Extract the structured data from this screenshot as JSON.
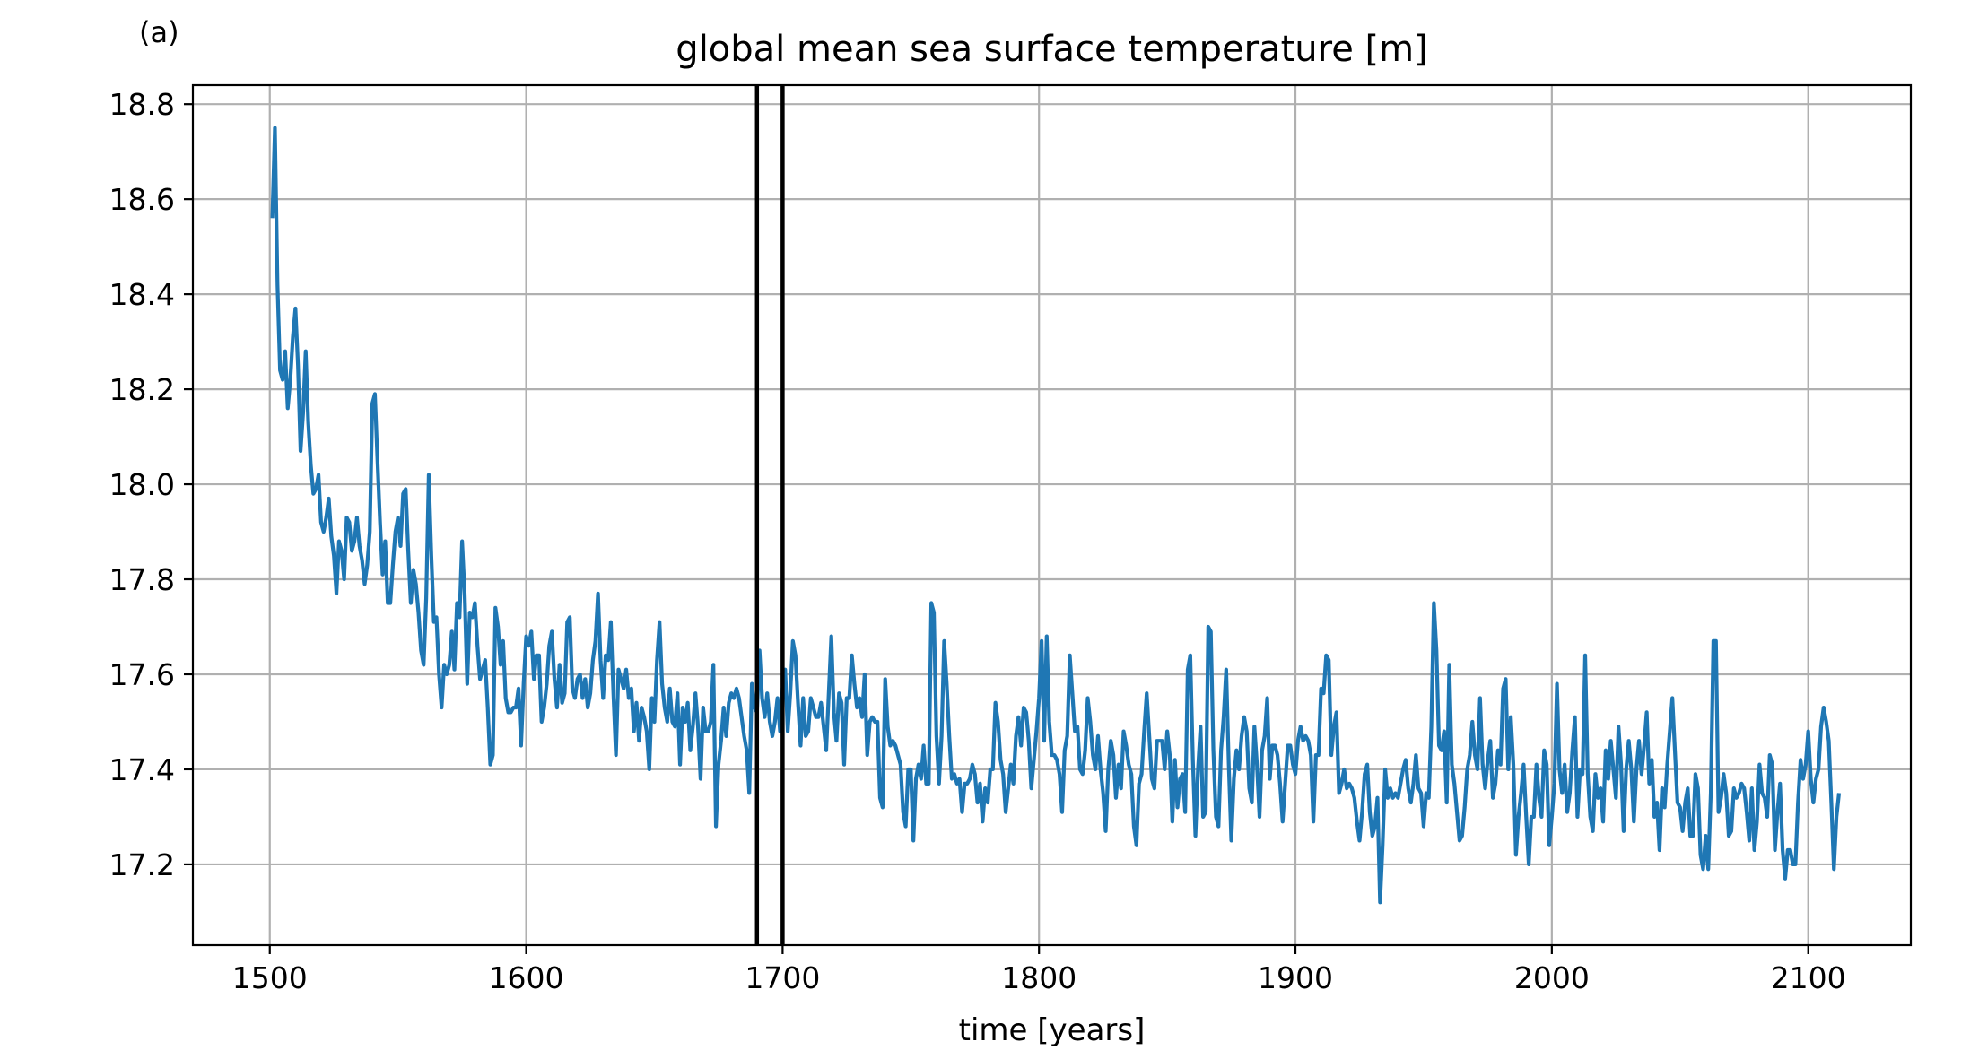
{
  "chart_data": {
    "type": "line",
    "panel_label": "(a)",
    "title": "global mean sea surface temperature [m]",
    "xlabel": "time [years]",
    "ylabel": "",
    "xlim": [
      1470,
      2140
    ],
    "ylim": [
      17.03,
      18.84
    ],
    "xticks": [
      1500,
      1600,
      1700,
      1800,
      1900,
      2000,
      2100
    ],
    "xtick_labels": [
      "1500",
      "1600",
      "1700",
      "1800",
      "1900",
      "2000",
      "2100"
    ],
    "yticks": [
      17.2,
      17.4,
      17.6,
      17.8,
      18.0,
      18.2,
      18.4,
      18.6,
      18.8
    ],
    "ytick_labels": [
      "17.2",
      "17.4",
      "17.6",
      "17.8",
      "18.0",
      "18.2",
      "18.4",
      "18.6",
      "18.8"
    ],
    "grid": true,
    "line_color": "#1f77b4",
    "vlines": [
      1690,
      1700
    ],
    "vline_color": "#000000",
    "series": [
      {
        "x_start": 1501,
        "x_step": 1,
        "values": [
          18.56,
          18.75,
          18.42,
          18.24,
          18.22,
          18.28,
          18.16,
          18.22,
          18.31,
          18.37,
          18.25,
          18.07,
          18.15,
          18.28,
          18.13,
          18.04,
          17.98,
          17.99,
          18.02,
          17.92,
          17.9,
          17.93,
          17.97,
          17.89,
          17.85,
          17.77,
          17.88,
          17.86,
          17.8,
          17.93,
          17.92,
          17.86,
          17.88,
          17.93,
          17.87,
          17.84,
          17.79,
          17.83,
          17.9,
          18.17,
          18.19,
          18.05,
          17.92,
          17.81,
          17.88,
          17.75,
          17.75,
          17.83,
          17.9,
          17.93,
          17.87,
          17.98,
          17.99,
          17.86,
          17.75,
          17.82,
          17.79,
          17.73,
          17.65,
          17.62,
          17.76,
          18.02,
          17.85,
          17.71,
          17.72,
          17.6,
          17.53,
          17.62,
          17.6,
          17.62,
          17.69,
          17.61,
          17.75,
          17.72,
          17.88,
          17.77,
          17.58,
          17.73,
          17.72,
          17.75,
          17.66,
          17.59,
          17.61,
          17.63,
          17.53,
          17.41,
          17.43,
          17.74,
          17.7,
          17.62,
          17.67,
          17.55,
          17.52,
          17.52,
          17.53,
          17.53,
          17.57,
          17.45,
          17.58,
          17.68,
          17.66,
          17.69,
          17.59,
          17.64,
          17.64,
          17.5,
          17.53,
          17.58,
          17.66,
          17.69,
          17.59,
          17.53,
          17.62,
          17.54,
          17.56,
          17.71,
          17.72,
          17.57,
          17.55,
          17.59,
          17.6,
          17.55,
          17.59,
          17.53,
          17.56,
          17.63,
          17.67,
          17.77,
          17.63,
          17.55,
          17.64,
          17.63,
          17.71,
          17.56,
          17.43,
          17.61,
          17.59,
          17.57,
          17.61,
          17.55,
          17.57,
          17.48,
          17.54,
          17.46,
          17.53,
          17.51,
          17.48,
          17.4,
          17.55,
          17.5,
          17.63,
          17.71,
          17.58,
          17.53,
          17.5,
          17.57,
          17.5,
          17.49,
          17.56,
          17.41,
          17.53,
          17.5,
          17.54,
          17.44,
          17.49,
          17.56,
          17.49,
          17.38,
          17.53,
          17.48,
          17.48,
          17.5,
          17.62,
          17.28,
          17.41,
          17.46,
          17.53,
          17.47,
          17.54,
          17.56,
          17.55,
          17.57,
          17.55,
          17.51,
          17.47,
          17.44,
          17.35,
          17.58,
          17.53,
          17.52,
          17.65,
          17.55,
          17.51,
          17.56,
          17.5,
          17.47,
          17.5,
          17.55,
          17.48,
          17.57,
          17.61,
          17.48,
          17.56,
          17.67,
          17.64,
          17.54,
          17.45,
          17.55,
          17.47,
          17.48,
          17.55,
          17.53,
          17.51,
          17.51,
          17.54,
          17.49,
          17.44,
          17.56,
          17.68,
          17.52,
          17.46,
          17.56,
          17.54,
          17.41,
          17.55,
          17.55,
          17.64,
          17.58,
          17.53,
          17.55,
          17.51,
          17.6,
          17.43,
          17.5,
          17.51,
          17.5,
          17.5,
          17.34,
          17.32,
          17.59,
          17.49,
          17.45,
          17.46,
          17.45,
          17.43,
          17.41,
          17.31,
          17.28,
          17.4,
          17.4,
          17.25,
          17.38,
          17.41,
          17.38,
          17.45,
          17.37,
          17.37,
          17.75,
          17.73,
          17.47,
          17.37,
          17.47,
          17.67,
          17.58,
          17.47,
          17.38,
          17.39,
          17.37,
          17.38,
          17.31,
          17.37,
          17.37,
          17.38,
          17.41,
          17.39,
          17.33,
          17.37,
          17.29,
          17.36,
          17.33,
          17.4,
          17.4,
          17.54,
          17.5,
          17.42,
          17.39,
          17.31,
          17.36,
          17.41,
          17.37,
          17.47,
          17.51,
          17.45,
          17.53,
          17.52,
          17.46,
          17.36,
          17.42,
          17.48,
          17.55,
          17.67,
          17.46,
          17.68,
          17.5,
          17.43,
          17.43,
          17.42,
          17.39,
          17.31,
          17.44,
          17.47,
          17.64,
          17.56,
          17.48,
          17.49,
          17.4,
          17.39,
          17.44,
          17.55,
          17.5,
          17.43,
          17.4,
          17.47,
          17.4,
          17.35,
          17.27,
          17.4,
          17.46,
          17.43,
          17.34,
          17.41,
          17.36,
          17.48,
          17.45,
          17.41,
          17.39,
          17.28,
          17.24,
          17.37,
          17.39,
          17.48,
          17.56,
          17.47,
          17.38,
          17.36,
          17.46,
          17.46,
          17.46,
          17.4,
          17.48,
          17.43,
          17.29,
          17.42,
          17.32,
          17.38,
          17.39,
          17.31,
          17.61,
          17.64,
          17.42,
          17.26,
          17.4,
          17.49,
          17.3,
          17.31,
          17.7,
          17.69,
          17.44,
          17.3,
          17.28,
          17.44,
          17.51,
          17.61,
          17.41,
          17.25,
          17.38,
          17.44,
          17.4,
          17.47,
          17.51,
          17.48,
          17.36,
          17.33,
          17.49,
          17.41,
          17.3,
          17.44,
          17.47,
          17.55,
          17.38,
          17.45,
          17.45,
          17.43,
          17.37,
          17.29,
          17.37,
          17.45,
          17.45,
          17.41,
          17.39,
          17.46,
          17.49,
          17.46,
          17.47,
          17.46,
          17.43,
          17.29,
          17.43,
          17.43,
          17.57,
          17.56,
          17.64,
          17.63,
          17.43,
          17.49,
          17.52,
          17.35,
          17.37,
          17.4,
          17.36,
          17.37,
          17.36,
          17.34,
          17.29,
          17.25,
          17.31,
          17.39,
          17.41,
          17.31,
          17.26,
          17.28,
          17.34,
          17.12,
          17.24,
          17.4,
          17.34,
          17.36,
          17.34,
          17.35,
          17.34,
          17.37,
          17.4,
          17.42,
          17.36,
          17.33,
          17.37,
          17.43,
          17.36,
          17.35,
          17.28,
          17.35,
          17.34,
          17.49,
          17.75,
          17.65,
          17.45,
          17.44,
          17.48,
          17.33,
          17.62,
          17.41,
          17.37,
          17.31,
          17.25,
          17.26,
          17.32,
          17.4,
          17.43,
          17.5,
          17.43,
          17.4,
          17.55,
          17.41,
          17.36,
          17.42,
          17.46,
          17.34,
          17.37,
          17.44,
          17.41,
          17.57,
          17.59,
          17.4,
          17.51,
          17.41,
          17.22,
          17.3,
          17.35,
          17.41,
          17.3,
          17.2,
          17.3,
          17.3,
          17.41,
          17.34,
          17.3,
          17.44,
          17.41,
          17.24,
          17.3,
          17.37,
          17.58,
          17.4,
          17.35,
          17.41,
          17.31,
          17.35,
          17.44,
          17.51,
          17.3,
          17.4,
          17.39,
          17.64,
          17.39,
          17.3,
          17.27,
          17.39,
          17.34,
          17.36,
          17.29,
          17.44,
          17.38,
          17.46,
          17.4,
          17.34,
          17.49,
          17.41,
          17.27,
          17.4,
          17.46,
          17.4,
          17.29,
          17.4,
          17.46,
          17.39,
          17.45,
          17.52,
          17.37,
          17.42,
          17.3,
          17.33,
          17.23,
          17.36,
          17.32,
          17.41,
          17.48,
          17.55,
          17.44,
          17.33,
          17.32,
          17.27,
          17.33,
          17.36,
          17.26,
          17.26,
          17.39,
          17.36,
          17.22,
          17.19,
          17.26,
          17.19,
          17.35,
          17.67,
          17.67,
          17.31,
          17.34,
          17.39,
          17.35,
          17.26,
          17.27,
          17.36,
          17.34,
          17.35,
          17.37,
          17.36,
          17.31,
          17.25,
          17.36,
          17.23,
          17.29,
          17.41,
          17.35,
          17.34,
          17.3,
          17.43,
          17.41,
          17.23,
          17.31,
          17.37,
          17.23,
          17.17,
          17.23,
          17.23,
          17.2,
          17.2,
          17.33,
          17.42,
          17.38,
          17.41,
          17.48,
          17.38,
          17.33,
          17.38,
          17.4,
          17.49,
          17.53,
          17.5,
          17.46,
          17.33,
          17.19,
          17.3,
          17.35
        ]
      }
    ]
  }
}
